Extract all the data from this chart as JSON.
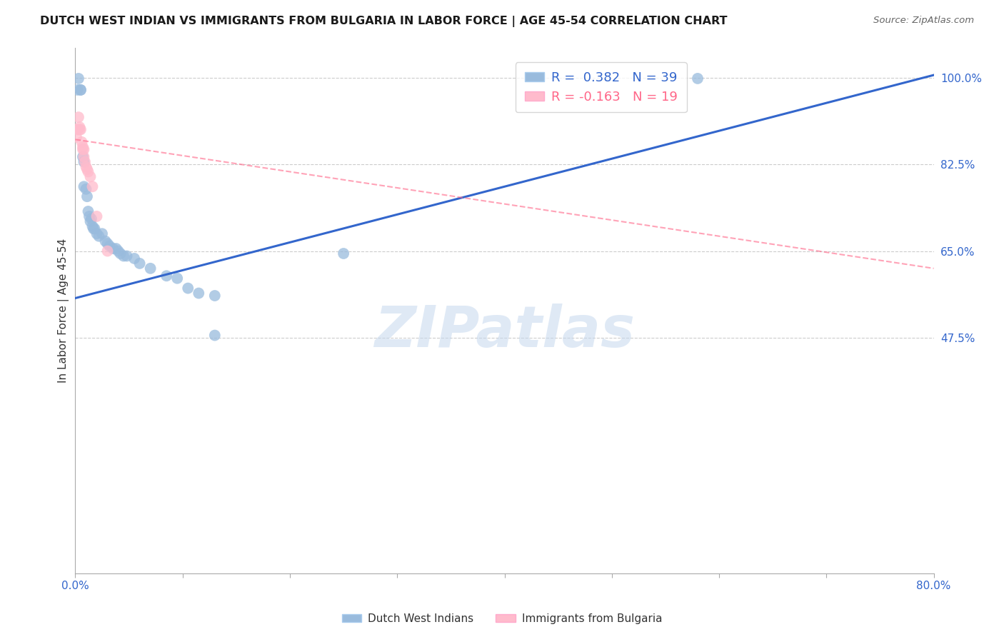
{
  "title": "DUTCH WEST INDIAN VS IMMIGRANTS FROM BULGARIA IN LABOR FORCE | AGE 45-54 CORRELATION CHART",
  "source": "Source: ZipAtlas.com",
  "ylabel": "In Labor Force | Age 45-54",
  "x_min": 0.0,
  "x_max": 0.8,
  "y_min": 0.0,
  "y_max": 1.06,
  "y_ticks_right": [
    1.0,
    0.825,
    0.65,
    0.475
  ],
  "y_tick_labels_right": [
    "100.0%",
    "82.5%",
    "65.0%",
    "47.5%"
  ],
  "grid_color": "#cccccc",
  "background_color": "#ffffff",
  "blue_color": "#99bbdd",
  "pink_color": "#ffbbcc",
  "blue_line_color": "#3366cc",
  "pink_line_color": "#ff6688",
  "R_blue": 0.382,
  "N_blue": 39,
  "R_pink": -0.163,
  "N_pink": 19,
  "legend_label_blue": "Dutch West Indians",
  "legend_label_pink": "Immigrants from Bulgaria",
  "watermark": "ZIPatlas",
  "blue_line_x0": 0.0,
  "blue_line_y0": 0.555,
  "blue_line_x1": 0.8,
  "blue_line_y1": 1.005,
  "pink_line_x0": 0.0,
  "pink_line_y0": 0.875,
  "pink_line_x1": 0.8,
  "pink_line_y1": 0.615,
  "blue_points_x": [
    0.002,
    0.003,
    0.005,
    0.005,
    0.007,
    0.008,
    0.008,
    0.01,
    0.011,
    0.012,
    0.013,
    0.014,
    0.015,
    0.016,
    0.017,
    0.018,
    0.02,
    0.022,
    0.025,
    0.028,
    0.03,
    0.032,
    0.035,
    0.038,
    0.04,
    0.042,
    0.045,
    0.048,
    0.055,
    0.06,
    0.07,
    0.085,
    0.095,
    0.105,
    0.115,
    0.13,
    0.25,
    0.58,
    0.13
  ],
  "blue_points_y": [
    0.975,
    0.998,
    0.975,
    0.975,
    0.84,
    0.83,
    0.78,
    0.775,
    0.76,
    0.73,
    0.72,
    0.71,
    0.715,
    0.7,
    0.695,
    0.695,
    0.685,
    0.68,
    0.685,
    0.67,
    0.665,
    0.66,
    0.655,
    0.655,
    0.65,
    0.645,
    0.64,
    0.64,
    0.635,
    0.625,
    0.615,
    0.6,
    0.595,
    0.575,
    0.565,
    0.56,
    0.645,
    0.998,
    0.48
  ],
  "pink_points_x": [
    0.001,
    0.002,
    0.003,
    0.004,
    0.004,
    0.005,
    0.006,
    0.007,
    0.007,
    0.008,
    0.008,
    0.009,
    0.01,
    0.011,
    0.012,
    0.014,
    0.016,
    0.02,
    0.03
  ],
  "pink_points_y": [
    0.88,
    0.895,
    0.92,
    0.9,
    0.895,
    0.895,
    0.87,
    0.86,
    0.855,
    0.855,
    0.84,
    0.83,
    0.82,
    0.815,
    0.81,
    0.8,
    0.78,
    0.72,
    0.65
  ]
}
